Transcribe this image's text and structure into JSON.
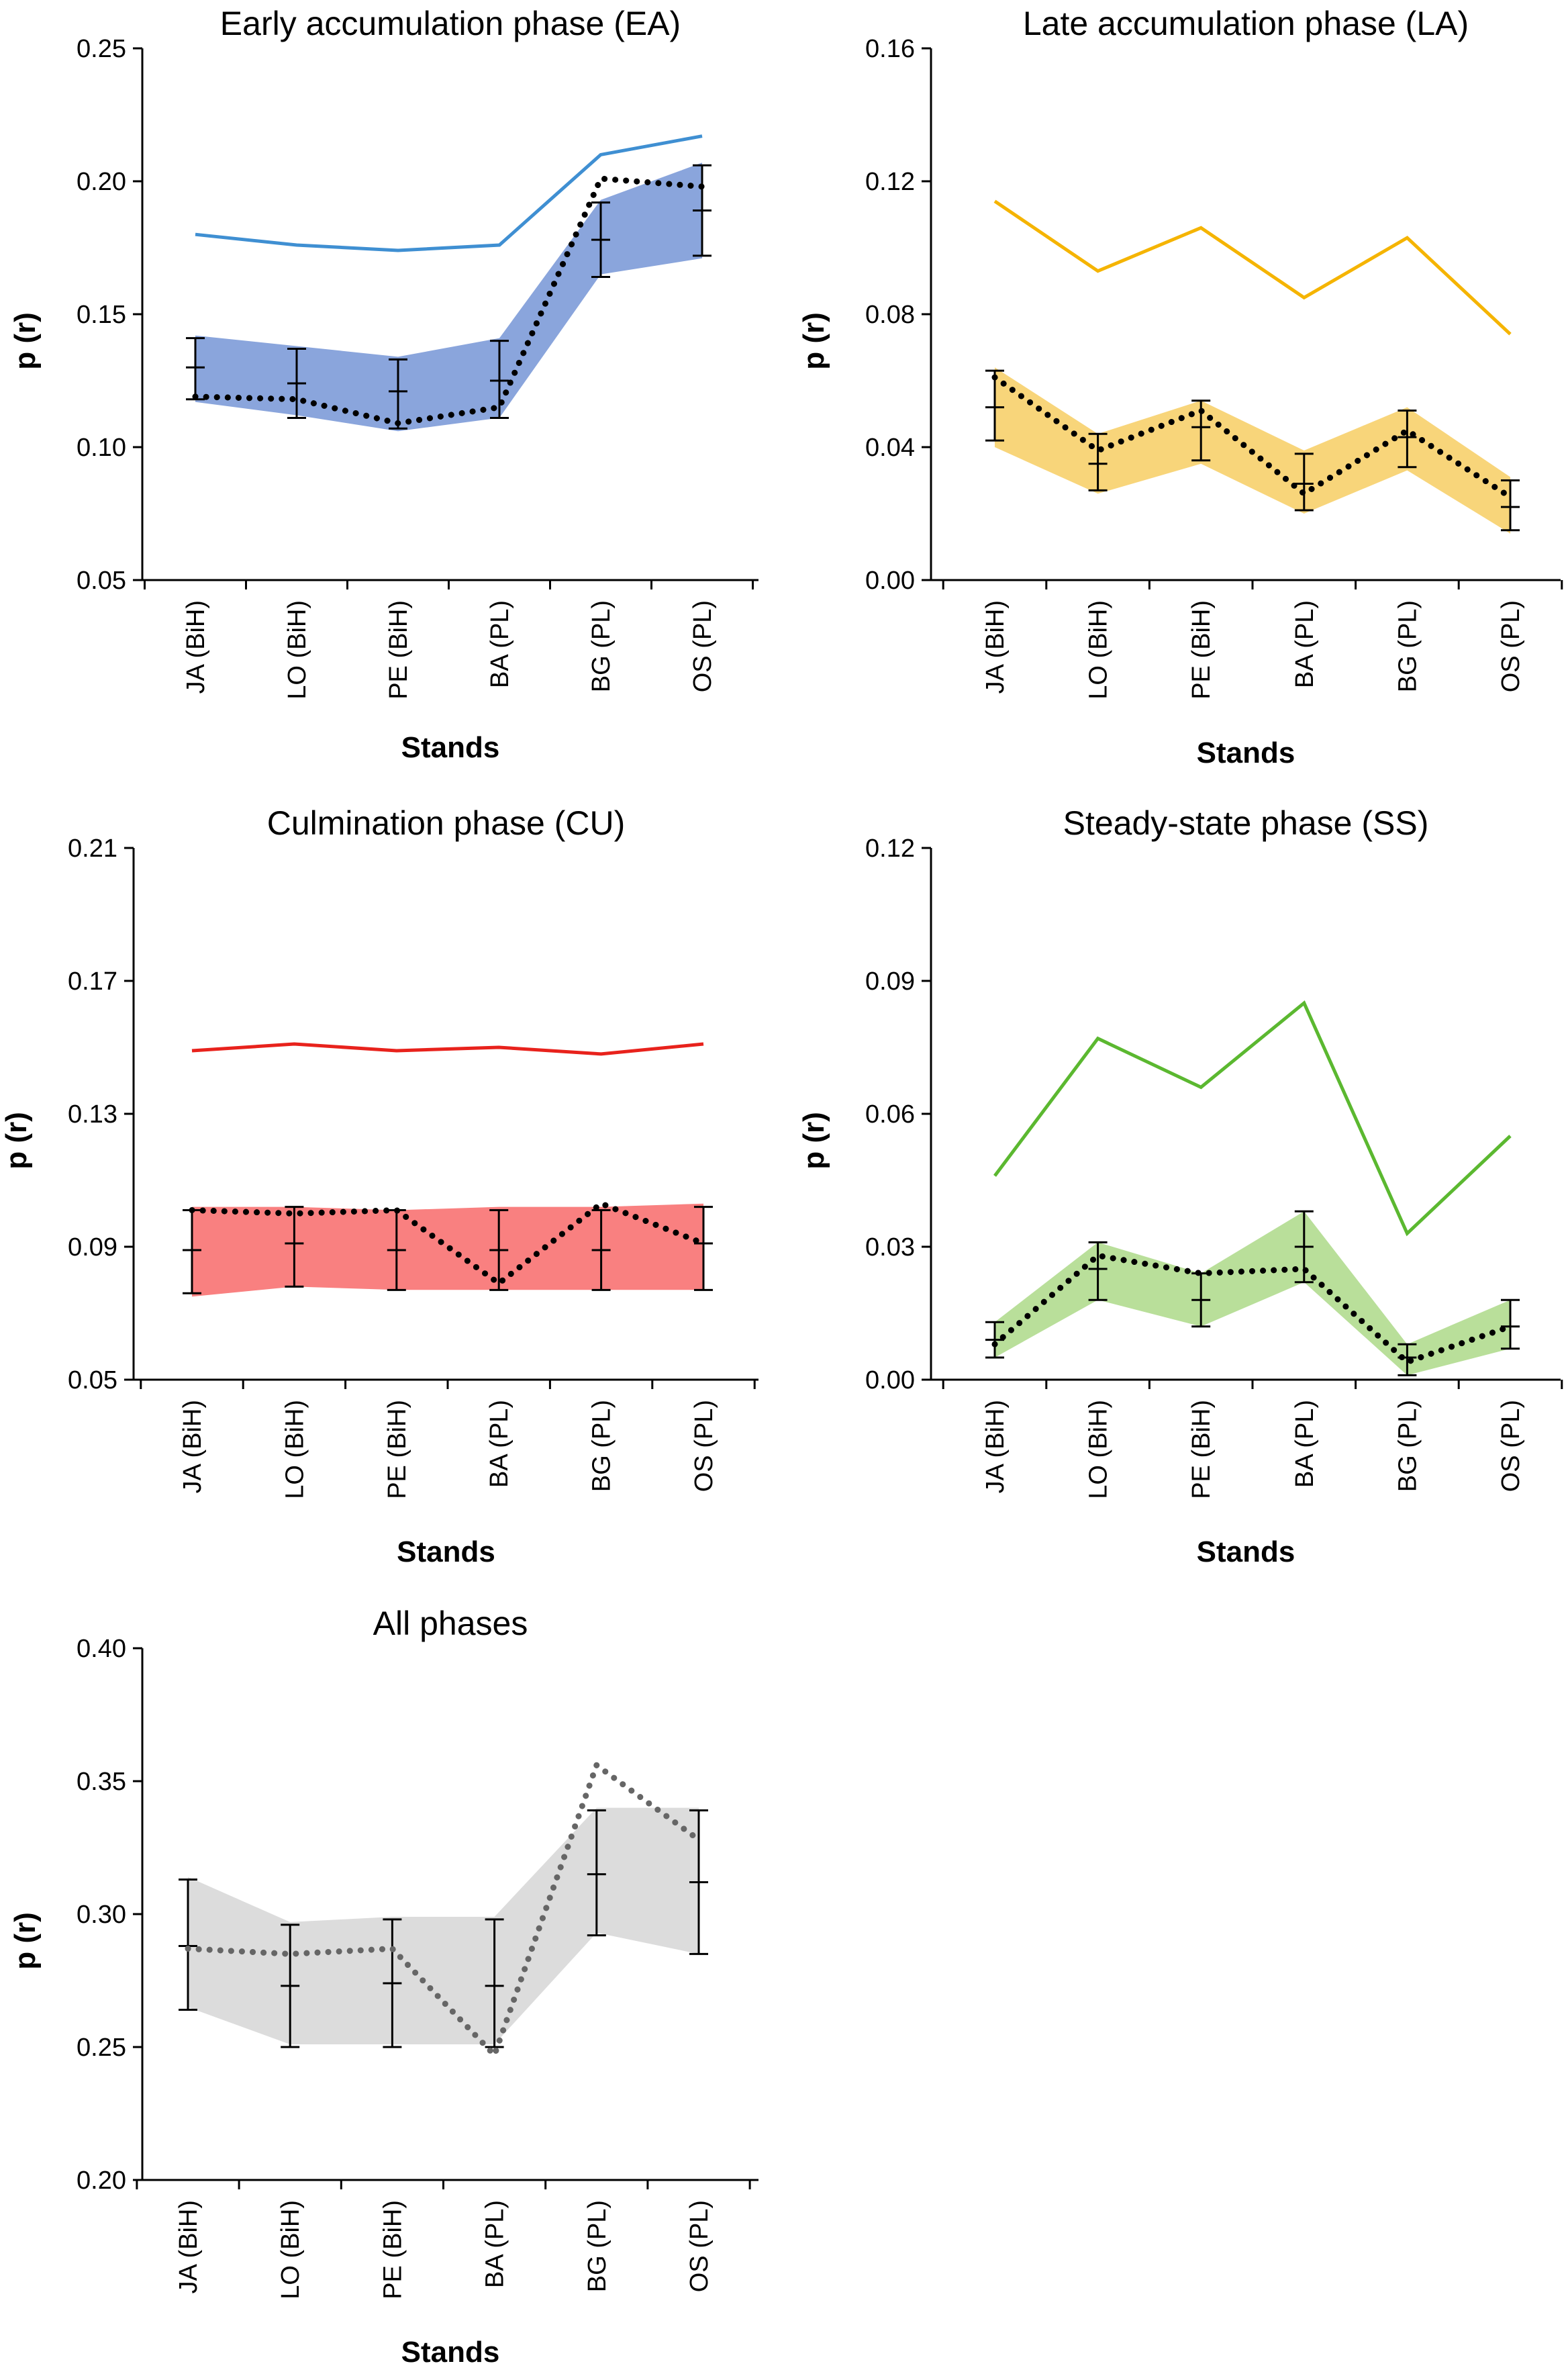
{
  "chart_data": [
    {
      "type": "line",
      "title": "Early accumulation phase (EA)",
      "xlabel": "Stands",
      "ylabel": "p (r)",
      "categories": [
        "JA (BiH)",
        "LO (BiH)",
        "PE (BiH)",
        "BA (PL)",
        "BG (PL)",
        "OS (PL)"
      ],
      "ylim": [
        0.05,
        0.25
      ],
      "yticks": [
        "0.05",
        "0.10",
        "0.15",
        "0.20",
        "0.25"
      ],
      "colors": {
        "observed": "#3f8fd2",
        "band": "#8aa5dc",
        "expected": "#000000"
      },
      "series": [
        {
          "name": "observed",
          "values": [
            0.18,
            0.176,
            0.174,
            0.176,
            0.21,
            0.217
          ]
        },
        {
          "name": "expected",
          "values": [
            0.119,
            0.118,
            0.109,
            0.115,
            0.201,
            0.198
          ]
        },
        {
          "name": "band_upper",
          "values": [
            0.142,
            0.138,
            0.134,
            0.141,
            0.193,
            0.207
          ]
        },
        {
          "name": "band_lower",
          "values": [
            0.117,
            0.112,
            0.106,
            0.111,
            0.165,
            0.171
          ]
        },
        {
          "name": "mean",
          "values": [
            0.13,
            0.124,
            0.121,
            0.125,
            0.178,
            0.189
          ]
        },
        {
          "name": "err_upper",
          "values": [
            0.141,
            0.137,
            0.133,
            0.14,
            0.192,
            0.206
          ]
        },
        {
          "name": "err_lower",
          "values": [
            0.118,
            0.111,
            0.107,
            0.111,
            0.164,
            0.172
          ]
        }
      ]
    },
    {
      "type": "line",
      "title": "Late accumulation phase (LA)",
      "xlabel": "Stands",
      "ylabel": "p (r)",
      "categories": [
        "JA (BiH)",
        "LO (BiH)",
        "PE (BiH)",
        "BA (PL)",
        "BG (PL)",
        "OS (PL)"
      ],
      "ylim": [
        0.0,
        0.16
      ],
      "yticks": [
        "0.00",
        "0.04",
        "0.08",
        "0.12",
        "0.16"
      ],
      "colors": {
        "observed": "#f5b400",
        "band": "#f8d57a",
        "expected": "#000000"
      },
      "series": [
        {
          "name": "observed",
          "values": [
            0.114,
            0.093,
            0.106,
            0.085,
            0.103,
            0.074
          ]
        },
        {
          "name": "expected",
          "values": [
            0.061,
            0.039,
            0.051,
            0.026,
            0.045,
            0.025
          ]
        },
        {
          "name": "band_upper",
          "values": [
            0.064,
            0.044,
            0.054,
            0.039,
            0.052,
            0.031
          ]
        },
        {
          "name": "band_lower",
          "values": [
            0.04,
            0.026,
            0.035,
            0.02,
            0.033,
            0.014
          ]
        },
        {
          "name": "mean",
          "values": [
            0.052,
            0.035,
            0.046,
            0.029,
            0.043,
            0.022
          ]
        },
        {
          "name": "err_upper",
          "values": [
            0.063,
            0.044,
            0.054,
            0.038,
            0.051,
            0.03
          ]
        },
        {
          "name": "err_lower",
          "values": [
            0.042,
            0.027,
            0.036,
            0.021,
            0.034,
            0.015
          ]
        }
      ]
    },
    {
      "type": "line",
      "title": "Culmination phase (CU)",
      "xlabel": "Stands",
      "ylabel": "p (r)",
      "categories": [
        "JA (BiH)",
        "LO (BiH)",
        "PE (BiH)",
        "BA (PL)",
        "BG (PL)",
        "OS (PL)"
      ],
      "ylim": [
        0.05,
        0.21
      ],
      "yticks": [
        "0.05",
        "0.09",
        "0.13",
        "0.17",
        "0.21"
      ],
      "colors": {
        "observed": "#e8221c",
        "band": "#f98080",
        "expected": "#000000"
      },
      "series": [
        {
          "name": "observed",
          "values": [
            0.149,
            0.151,
            0.149,
            0.15,
            0.148,
            0.151
          ]
        },
        {
          "name": "expected",
          "values": [
            0.101,
            0.1,
            0.101,
            0.079,
            0.103,
            0.091
          ]
        },
        {
          "name": "band_upper",
          "values": [
            0.102,
            0.102,
            0.101,
            0.102,
            0.102,
            0.103
          ]
        },
        {
          "name": "band_lower",
          "values": [
            0.075,
            0.078,
            0.077,
            0.077,
            0.077,
            0.077
          ]
        },
        {
          "name": "mean",
          "values": [
            0.089,
            0.091,
            0.089,
            0.089,
            0.089,
            0.091
          ]
        },
        {
          "name": "err_upper",
          "values": [
            0.101,
            0.102,
            0.101,
            0.101,
            0.101,
            0.102
          ]
        },
        {
          "name": "err_lower",
          "values": [
            0.076,
            0.078,
            0.077,
            0.077,
            0.077,
            0.077
          ]
        }
      ]
    },
    {
      "type": "line",
      "title": "Steady-state phase (SS)",
      "xlabel": "Stands",
      "ylabel": "p (r)",
      "categories": [
        "JA (BiH)",
        "LO (BiH)",
        "PE (BiH)",
        "BA (PL)",
        "BG (PL)",
        "OS (PL)"
      ],
      "ylim": [
        0.0,
        0.12
      ],
      "yticks": [
        "0.00",
        "0.03",
        "0.06",
        "0.09",
        "0.12"
      ],
      "colors": {
        "observed": "#5bb830",
        "band": "#b9df9a",
        "expected": "#000000"
      },
      "series": [
        {
          "name": "observed",
          "values": [
            0.046,
            0.077,
            0.066,
            0.085,
            0.033,
            0.055
          ]
        },
        {
          "name": "expected",
          "values": [
            0.008,
            0.028,
            0.024,
            0.025,
            0.004,
            0.012
          ]
        },
        {
          "name": "band_upper",
          "values": [
            0.013,
            0.031,
            0.024,
            0.038,
            0.008,
            0.018
          ]
        },
        {
          "name": "band_lower",
          "values": [
            0.005,
            0.018,
            0.012,
            0.022,
            0.001,
            0.007
          ]
        },
        {
          "name": "mean",
          "values": [
            0.009,
            0.025,
            0.018,
            0.03,
            0.005,
            0.012
          ]
        },
        {
          "name": "err_upper",
          "values": [
            0.013,
            0.031,
            0.024,
            0.038,
            0.008,
            0.018
          ]
        },
        {
          "name": "err_lower",
          "values": [
            0.005,
            0.018,
            0.012,
            0.022,
            0.001,
            0.007
          ]
        }
      ]
    },
    {
      "type": "line",
      "title": "All phases",
      "xlabel": "Stands",
      "ylabel": "p (r)",
      "categories": [
        "JA (BiH)",
        "LO (BiH)",
        "PE (BiH)",
        "BA (PL)",
        "BG (PL)",
        "OS (PL)"
      ],
      "ylim": [
        0.2,
        0.4
      ],
      "yticks": [
        "0.20",
        "0.25",
        "0.30",
        "0.35",
        "0.40"
      ],
      "colors": {
        "observed": "",
        "band": "#dcdcdc",
        "expected": "#000000",
        "expected_alt": "#666666"
      },
      "series": [
        {
          "name": "expected",
          "values": [
            0.287,
            0.285,
            0.287,
            0.247,
            0.356,
            0.328
          ]
        },
        {
          "name": "band_upper",
          "values": [
            0.314,
            0.297,
            0.299,
            0.299,
            0.34,
            0.34
          ]
        },
        {
          "name": "band_lower",
          "values": [
            0.265,
            0.251,
            0.251,
            0.251,
            0.293,
            0.285
          ]
        },
        {
          "name": "mean",
          "values": [
            0.288,
            0.273,
            0.274,
            0.273,
            0.315,
            0.312
          ]
        },
        {
          "name": "err_upper",
          "values": [
            0.313,
            0.296,
            0.298,
            0.298,
            0.339,
            0.339
          ]
        },
        {
          "name": "err_lower",
          "values": [
            0.264,
            0.25,
            0.25,
            0.25,
            0.292,
            0.285
          ]
        }
      ]
    }
  ]
}
